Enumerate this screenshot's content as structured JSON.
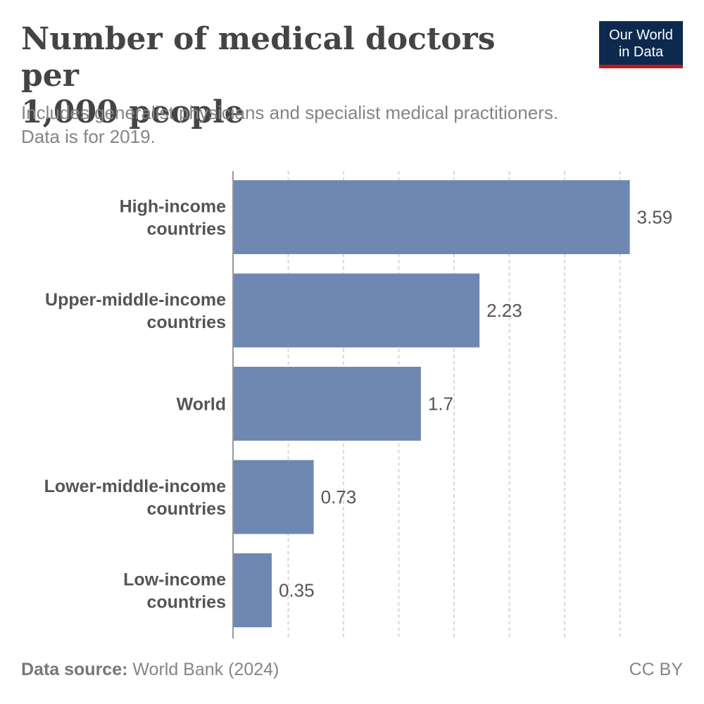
{
  "header": {
    "title_lines": [
      "Number of medical doctors per",
      "1,000 people"
    ],
    "subtitle_lines": [
      "Includes generalist physicians and specialist medical practitioners.",
      "Data is for 2019."
    ]
  },
  "logo": {
    "lines": [
      "Our World",
      "in Data"
    ],
    "bg_color": "#0d2a4e",
    "accent_color": "#c4161c"
  },
  "chart_data": {
    "type": "bar",
    "orientation": "horizontal",
    "categories": [
      [
        "High-income",
        "countries"
      ],
      [
        "Upper-middle-income",
        "countries"
      ],
      [
        "World"
      ],
      [
        "Lower-middle-income",
        "countries"
      ],
      [
        "Low-income",
        "countries"
      ]
    ],
    "values": [
      3.59,
      2.23,
      1.7,
      0.73,
      0.35
    ],
    "value_labels": [
      "3.59",
      "2.23",
      "1.7",
      "0.73",
      "0.35"
    ],
    "xlim": [
      0,
      3.7
    ],
    "grid": true,
    "grid_interval": 0.5,
    "bar_color": "#6e88b1"
  },
  "footer": {
    "source_label": "Data source:",
    "source_text": "World Bank (2024)",
    "license": "CC BY"
  }
}
